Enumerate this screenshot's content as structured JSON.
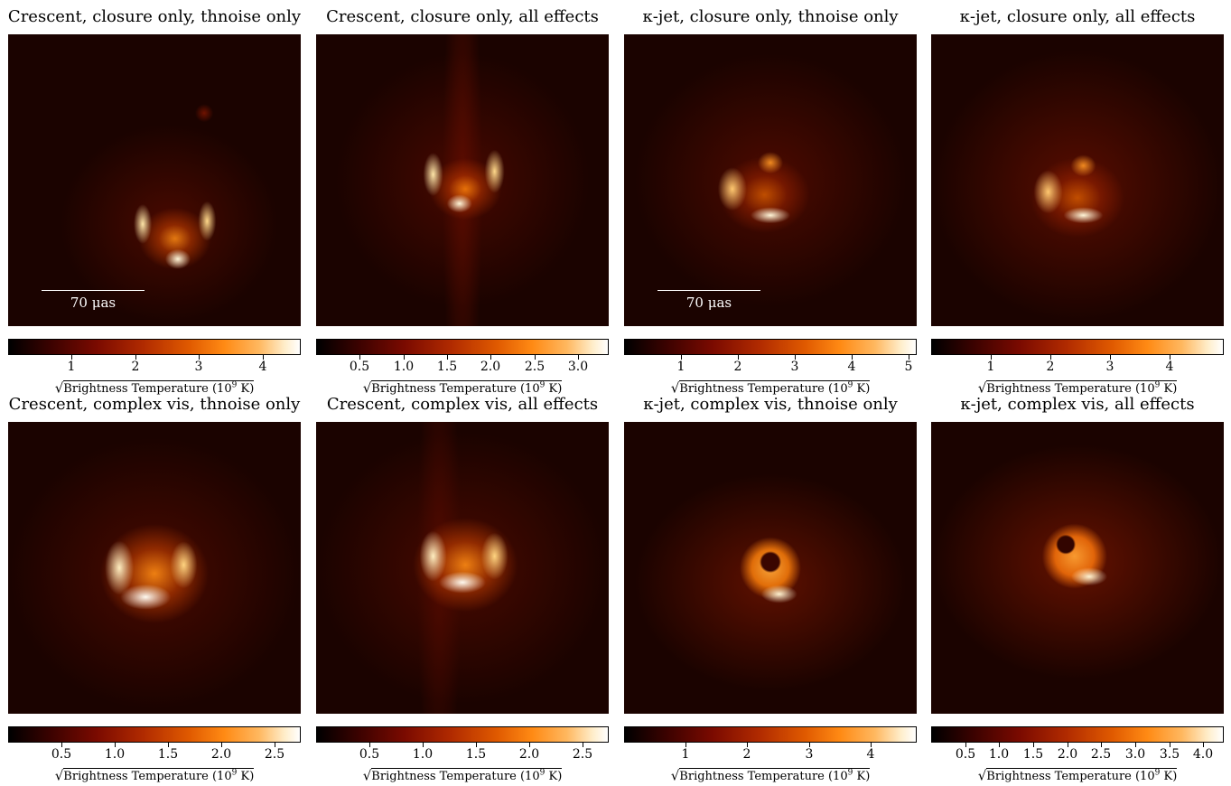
{
  "figure": {
    "panels": [
      {
        "id": "p1",
        "title": "Crescent, closure only, thnoise only",
        "scalebar": "70 μas",
        "colorbar": {
          "max": 4.6,
          "ticks": [
            {
              "v": 1,
              "t": "1"
            },
            {
              "v": 2,
              "t": "2"
            },
            {
              "v": 3,
              "t": "3"
            },
            {
              "v": 4,
              "t": "4"
            }
          ]
        },
        "label": {
          "prefix": "√",
          "text": "Brightness Temperature (10",
          "exp": "9",
          "suffix": " K)"
        },
        "image": {
          "morphology": "crescent",
          "ring_opening": "top",
          "peak_color": "#fff2c0"
        }
      },
      {
        "id": "p2",
        "title": "Crescent, closure only, all effects",
        "scalebar": "",
        "colorbar": {
          "max": 3.35,
          "ticks": [
            {
              "v": 0.5,
              "t": "0.5"
            },
            {
              "v": 1.0,
              "t": "1.0"
            },
            {
              "v": 1.5,
              "t": "1.5"
            },
            {
              "v": 2.0,
              "t": "2.0"
            },
            {
              "v": 2.5,
              "t": "2.5"
            },
            {
              "v": 3.0,
              "t": "3.0"
            }
          ]
        },
        "label": {
          "prefix": "√",
          "text": "Brightness Temperature (10",
          "exp": "9",
          "suffix": " K)"
        },
        "image": {
          "morphology": "crescent",
          "ring_opening": "top",
          "peak_color": "#fff2c0"
        }
      },
      {
        "id": "p3",
        "title": "κ-jet, closure only, thnoise only",
        "scalebar": "70 μas",
        "colorbar": {
          "max": 5.15,
          "ticks": [
            {
              "v": 1,
              "t": "1"
            },
            {
              "v": 2,
              "t": "2"
            },
            {
              "v": 3,
              "t": "3"
            },
            {
              "v": 4,
              "t": "4"
            },
            {
              "v": 5,
              "t": "5"
            }
          ]
        },
        "label": {
          "prefix": "√",
          "text": "Brightness Temperature (10",
          "exp": "9",
          "suffix": " K)"
        },
        "image": {
          "morphology": "ring",
          "ring_opening": "right",
          "peak_color": "#fff2c0"
        }
      },
      {
        "id": "p4",
        "title": "κ-jet, closure only, all effects",
        "scalebar": "",
        "colorbar": {
          "max": 4.9,
          "ticks": [
            {
              "v": 1,
              "t": "1"
            },
            {
              "v": 2,
              "t": "2"
            },
            {
              "v": 3,
              "t": "3"
            },
            {
              "v": 4,
              "t": "4"
            }
          ]
        },
        "label": {
          "prefix": "√",
          "text": "Brightness Temperature (10",
          "exp": "9",
          "suffix": " K)"
        },
        "image": {
          "morphology": "ring",
          "ring_opening": "right",
          "peak_color": "#fff2c0"
        }
      },
      {
        "id": "p5",
        "title": "Crescent, complex vis, thnoise only",
        "scalebar": "",
        "colorbar": {
          "max": 2.75,
          "ticks": [
            {
              "v": 0.5,
              "t": "0.5"
            },
            {
              "v": 1.0,
              "t": "1.0"
            },
            {
              "v": 1.5,
              "t": "1.5"
            },
            {
              "v": 2.0,
              "t": "2.0"
            },
            {
              "v": 2.5,
              "t": "2.5"
            }
          ]
        },
        "label": {
          "prefix": "√",
          "text": "Brightness Temperature (10",
          "exp": "9",
          "suffix": " K)"
        },
        "image": {
          "morphology": "crescent",
          "ring_opening": "top",
          "peak_color": "#fff2c0"
        }
      },
      {
        "id": "p6",
        "title": "Crescent, complex vis, all effects",
        "scalebar": "",
        "colorbar": {
          "max": 2.75,
          "ticks": [
            {
              "v": 0.5,
              "t": "0.5"
            },
            {
              "v": 1.0,
              "t": "1.0"
            },
            {
              "v": 1.5,
              "t": "1.5"
            },
            {
              "v": 2.0,
              "t": "2.0"
            },
            {
              "v": 2.5,
              "t": "2.5"
            }
          ]
        },
        "label": {
          "prefix": "√",
          "text": "Brightness Temperature (10",
          "exp": "9",
          "suffix": " K)"
        },
        "image": {
          "morphology": "crescent",
          "ring_opening": "top",
          "peak_color": "#fff2c0"
        }
      },
      {
        "id": "p7",
        "title": "κ-jet, complex vis, thnoise only",
        "scalebar": "",
        "colorbar": {
          "max": 4.75,
          "ticks": [
            {
              "v": 1,
              "t": "1"
            },
            {
              "v": 2,
              "t": "2"
            },
            {
              "v": 3,
              "t": "3"
            },
            {
              "v": 4,
              "t": "4"
            }
          ]
        },
        "label": {
          "prefix": "√",
          "text": "Brightness Temperature (10",
          "exp": "9",
          "suffix": " K)"
        },
        "image": {
          "morphology": "ring",
          "ring_opening": "none",
          "peak_color": "#fff2c0"
        }
      },
      {
        "id": "p8",
        "title": "κ-jet, complex vis, all effects",
        "scalebar": "",
        "colorbar": {
          "max": 4.3,
          "ticks": [
            {
              "v": 0.5,
              "t": "0.5"
            },
            {
              "v": 1.0,
              "t": "1.0"
            },
            {
              "v": 1.5,
              "t": "1.5"
            },
            {
              "v": 2.0,
              "t": "2.0"
            },
            {
              "v": 2.5,
              "t": "2.5"
            },
            {
              "v": 3.0,
              "t": "3.0"
            },
            {
              "v": 3.5,
              "t": "3.5"
            },
            {
              "v": 4.0,
              "t": "4.0"
            }
          ]
        },
        "label": {
          "prefix": "√",
          "text": "Brightness Temperature (10",
          "exp": "9",
          "suffix": " K)"
        },
        "image": {
          "morphology": "ring",
          "ring_opening": "none",
          "peak_color": "#fff2c0"
        }
      }
    ],
    "colormap": {
      "name": "afmhot",
      "low": "#000000",
      "mid": "#b02a00",
      "high": "#ffffff"
    }
  }
}
